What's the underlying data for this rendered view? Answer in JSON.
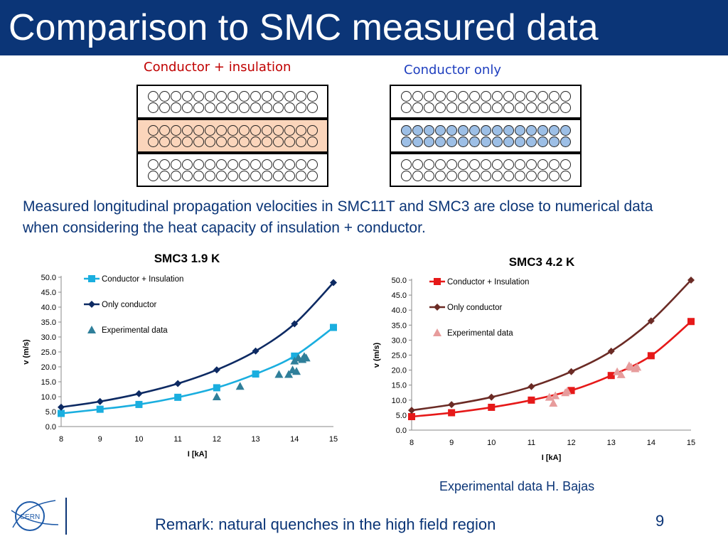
{
  "slide": {
    "title": "Comparison to SMC measured data",
    "label_left": "Conductor + insulation",
    "label_right": "Conductor only",
    "description": "Measured longitudinal propagation velocities in SMC11T and SMC3 are close to numerical data when considering the heat capacity of insulation + conductor.",
    "credit": "Experimental data H. Bajas",
    "remark": "Remark: natural quenches in the high field region",
    "page_number": "9",
    "logo_text": "CERN"
  },
  "colors": {
    "title_bg": "#0b3577",
    "text_blue": "#0b3577",
    "label_left": "#c00000",
    "label_right": "#1f3fbf",
    "insulation_fill": "#fbd5bb",
    "conductor_fill": "#9dbfe6"
  },
  "chart_data": [
    {
      "type": "line",
      "title": "SMC3 1.9 K",
      "xlabel": "I [kA]",
      "ylabel": "v (m/s)",
      "xlim": [
        8,
        15
      ],
      "ylim": [
        0,
        50
      ],
      "xticks": [
        8,
        9,
        10,
        11,
        12,
        13,
        14,
        15
      ],
      "yticks": [
        0,
        5,
        10,
        15,
        20,
        25,
        30,
        35,
        40,
        45,
        50
      ],
      "grid": false,
      "legend": "top-left",
      "series": [
        {
          "name": "Conductor + Insulation",
          "marker": "square",
          "color": "#1aaedf",
          "x": [
            8,
            9,
            10,
            11,
            12,
            13,
            14,
            15
          ],
          "y": [
            4.4,
            5.8,
            7.4,
            9.8,
            13.0,
            17.6,
            23.6,
            33.2
          ]
        },
        {
          "name": "Only conductor",
          "marker": "diamond",
          "color": "#0d2a63",
          "x": [
            8,
            9,
            10,
            11,
            12,
            13,
            14,
            15
          ],
          "y": [
            6.5,
            8.4,
            11.0,
            14.4,
            19.0,
            25.3,
            34.4,
            48.2
          ]
        },
        {
          "name": "Experimental data",
          "marker": "triangle",
          "color": "#2f7f9a",
          "scatter": true,
          "x": [
            12.0,
            12.6,
            13.6,
            13.85,
            13.95,
            14.0,
            14.05,
            14.1,
            14.2,
            14.25,
            14.3
          ],
          "y": [
            10.0,
            13.5,
            17.5,
            17.5,
            19.0,
            22.0,
            18.5,
            23.0,
            22.5,
            23.5,
            23.0
          ]
        }
      ]
    },
    {
      "type": "line",
      "title": "SMC3 4.2 K",
      "xlabel": "I [kA]",
      "ylabel": "v (m/s)",
      "xlim": [
        8,
        15
      ],
      "ylim": [
        0,
        50
      ],
      "xticks": [
        8,
        9,
        10,
        11,
        12,
        13,
        14,
        15
      ],
      "yticks": [
        0,
        5,
        10,
        15,
        20,
        25,
        30,
        35,
        40,
        45,
        50
      ],
      "grid": false,
      "legend": "top-left",
      "series": [
        {
          "name": "Conductor + Insulation",
          "marker": "square",
          "color": "#e61919",
          "x": [
            8,
            9,
            10,
            11,
            12,
            13,
            14,
            15
          ],
          "y": [
            4.5,
            5.8,
            7.6,
            10.0,
            13.2,
            18.2,
            24.8,
            36.2
          ]
        },
        {
          "name": "Only conductor",
          "marker": "diamond",
          "color": "#6b2b25",
          "x": [
            8,
            9,
            10,
            11,
            12,
            13,
            14,
            15
          ],
          "y": [
            6.6,
            8.5,
            11.0,
            14.5,
            19.5,
            26.3,
            36.4,
            50.0
          ]
        },
        {
          "name": "Experimental data",
          "marker": "triangle",
          "color": "#e79c9c",
          "scatter": true,
          "x": [
            11.45,
            11.55,
            11.6,
            11.85,
            11.9,
            13.15,
            13.25,
            13.45,
            13.5,
            13.6,
            13.65
          ],
          "y": [
            11.0,
            9.0,
            11.5,
            12.5,
            13.0,
            19.5,
            18.5,
            21.5,
            21.0,
            20.5,
            21.0
          ]
        }
      ]
    }
  ]
}
